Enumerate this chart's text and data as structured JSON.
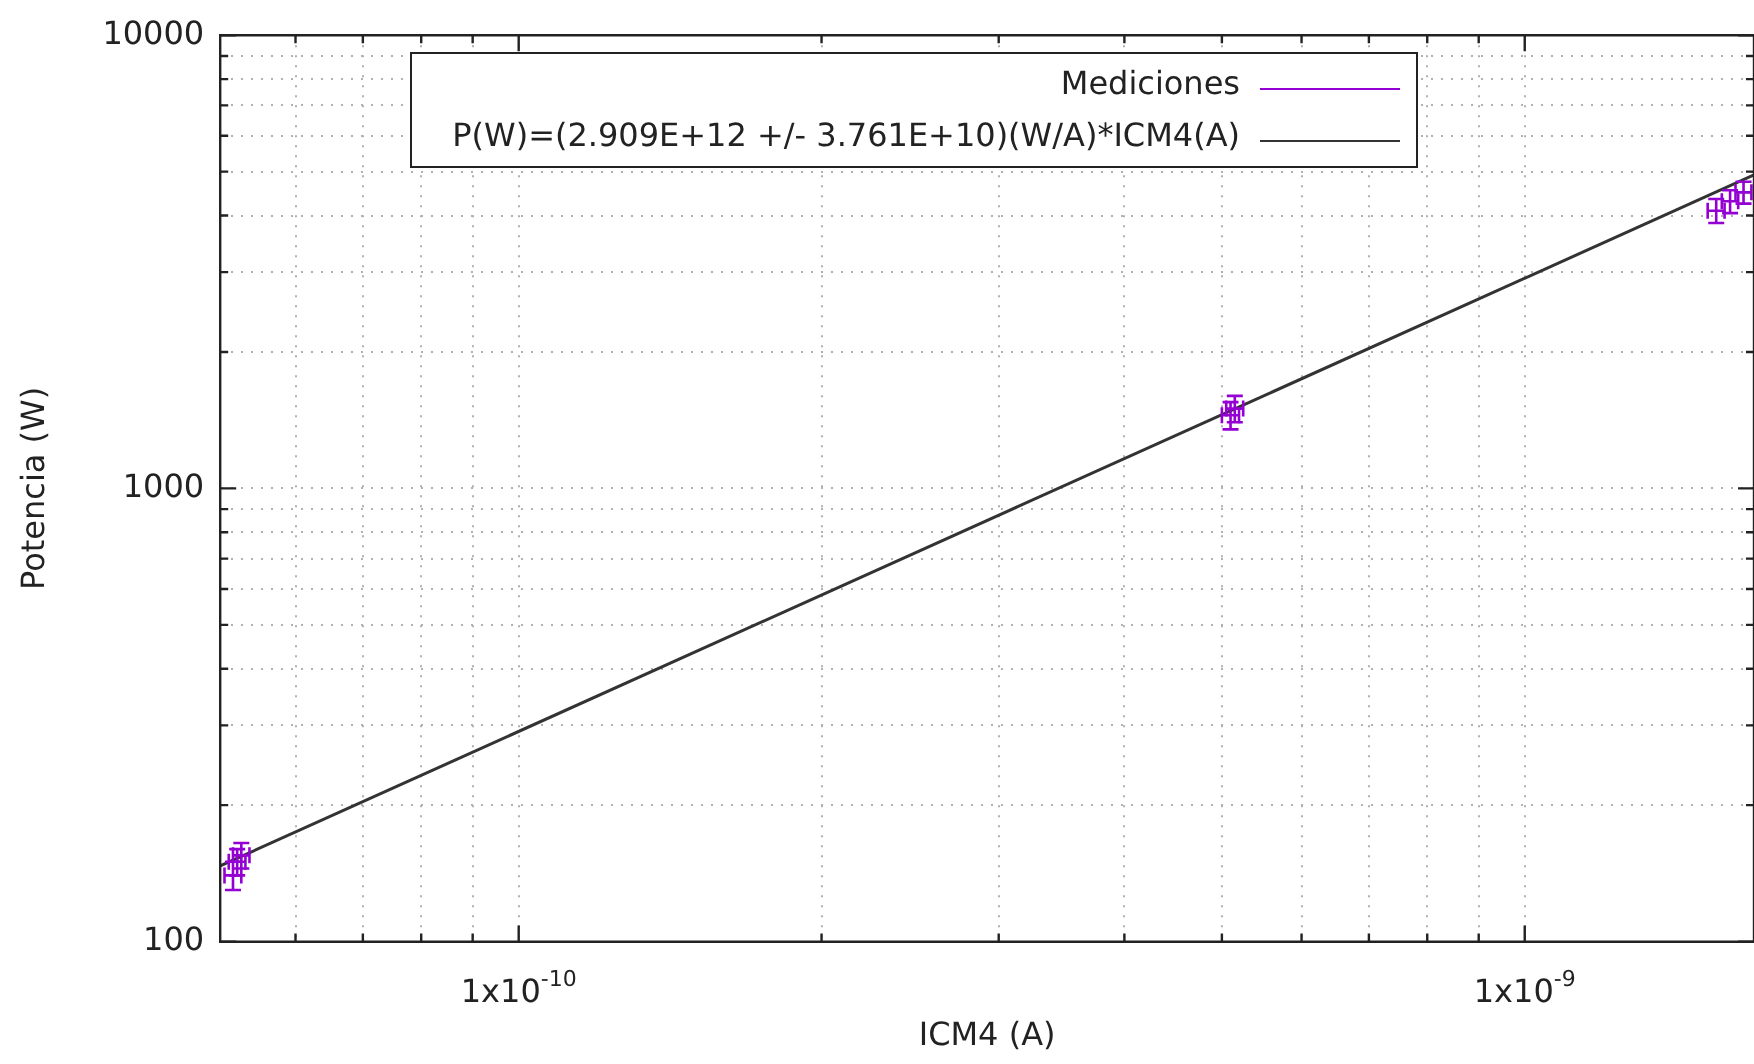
{
  "chart_data": {
    "type": "scatter",
    "xlabel": "ICM4 (A)",
    "ylabel": "Potencia (W)",
    "log": "xy",
    "grid": true,
    "legend": "top right",
    "xlim": [
      5.05e-11,
      1.69e-09
    ],
    "ylim": [
      100,
      10000
    ],
    "xticks": [
      {
        "value": 6e-11,
        "label": null
      },
      {
        "value": 7e-11,
        "label": null
      },
      {
        "value": 8e-11,
        "label": null
      },
      {
        "value": 9e-11,
        "label": null
      },
      {
        "value": 1e-10,
        "label": "1x10$^{-10}$"
      },
      {
        "value": 2e-10,
        "label": null
      },
      {
        "value": 3e-10,
        "label": null
      },
      {
        "value": 4e-10,
        "label": null
      },
      {
        "value": 5e-10,
        "label": null
      },
      {
        "value": 6e-10,
        "label": null
      },
      {
        "value": 7e-10,
        "label": null
      },
      {
        "value": 8e-10,
        "label": null
      },
      {
        "value": 9e-10,
        "label": null
      },
      {
        "value": 1e-09,
        "label": "1x10$^{-9}$"
      }
    ],
    "yticks": [
      100,
      {
        "value": 200,
        "label": null
      },
      {
        "value": 300,
        "label": null
      },
      {
        "value": 400,
        "label": null
      },
      {
        "value": 500,
        "label": null
      },
      {
        "value": 600,
        "label": null
      },
      {
        "value": 700,
        "label": null
      },
      {
        "value": 800,
        "label": null
      },
      {
        "value": 900,
        "label": null
      },
      1000,
      {
        "value": 2000,
        "label": null
      },
      {
        "value": 3000,
        "label": null
      },
      {
        "value": 4000,
        "label": null
      },
      {
        "value": 5000,
        "label": null
      },
      {
        "value": 6000,
        "label": null
      },
      {
        "value": 7000,
        "label": null
      },
      {
        "value": 8000,
        "label": null
      },
      {
        "value": 9000,
        "label": null
      },
      10000
    ],
    "series": [
      {
        "name": "Mediciones",
        "color": "#9400d3",
        "x": [
          5.2e-11,
          5.25e-11,
          5.3e-11,
          5.1e-10,
          5.15e-10,
          1.55e-09,
          1.6e-09,
          1.65e-09
        ],
        "values": [
          140,
          150,
          155,
          1450,
          1500,
          4100,
          4300,
          4500
        ],
        "errors": [
          10,
          10,
          10,
          100,
          100,
          250,
          250,
          250
        ],
        "xerrors": [
          1e-12,
          1e-12,
          1e-12,
          1e-11,
          1e-11,
          3e-11,
          3e-11,
          3e-11
        ]
      },
      {
        "name": "P(W)=(2.909E+12 +/- 3.761E+10)(W/A)*ICM4(A)",
        "type": "line",
        "color": "#333333",
        "x": [
          5.05e-11,
          1.69e-09
        ],
        "values": [
          146.9,
          4916
        ]
      }
    ]
  }
}
